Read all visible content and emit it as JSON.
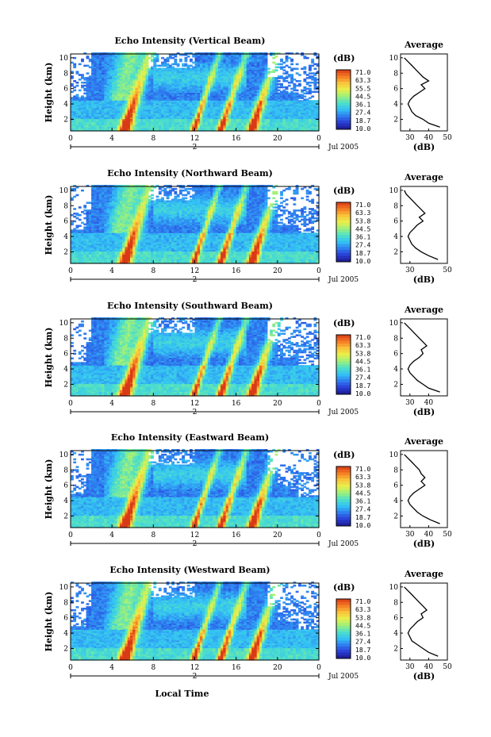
{
  "chart_data": [
    {
      "type": "heatmap",
      "title": "Echo Intensity (Vertical Beam)",
      "ylabel": "Height (km)",
      "xlim": [
        0,
        24
      ],
      "ylim": [
        0.5,
        10.5
      ],
      "x_ticks": [
        "0",
        "4",
        "8",
        "12",
        "16",
        "20",
        "0"
      ],
      "y_ticks": [
        "2",
        "4",
        "6",
        "8",
        "10"
      ],
      "date_labels": [
        "2",
        "Jul 2005"
      ],
      "colorbar": {
        "unit": "(dB)",
        "labels": [
          "71.0",
          "63.3",
          "55.5",
          "44.5",
          "36.1",
          "27.4",
          "18.7",
          "10.0"
        ]
      },
      "average_profile": {
        "title": "Average",
        "xlabel": "(dB)",
        "x_ticks": [
          "30",
          "40",
          "50"
        ],
        "xlim": [
          25,
          50
        ],
        "heights": [
          1,
          1.5,
          2,
          2.5,
          3,
          3.5,
          4,
          4.5,
          5,
          5.5,
          6,
          6.5,
          7,
          7.5,
          8,
          8.5,
          9,
          9.5,
          10
        ],
        "values": [
          46,
          40,
          37,
          33,
          31,
          30,
          29,
          30,
          32,
          35,
          38,
          36,
          40,
          37,
          35,
          33,
          31,
          29,
          27
        ]
      }
    },
    {
      "type": "heatmap",
      "title": "Echo Intensity (Northward Beam)",
      "ylabel": "Height (km)",
      "xlim": [
        0,
        24
      ],
      "ylim": [
        0.5,
        10.5
      ],
      "x_ticks": [
        "0",
        "4",
        "8",
        "12",
        "16",
        "20",
        "0"
      ],
      "y_ticks": [
        "2",
        "4",
        "6",
        "8",
        "10"
      ],
      "date_labels": [
        "2",
        "Jul 2005"
      ],
      "colorbar": {
        "unit": "(dB)",
        "labels": [
          "71.0",
          "63.3",
          "53.8",
          "44.5",
          "36.1",
          "27.4",
          "18.7",
          "10.0"
        ]
      },
      "average_profile": {
        "title": "Average",
        "xlabel": "(dB)",
        "x_ticks": [
          "30",
          "50"
        ],
        "xlim": [
          25,
          50
        ],
        "heights": [
          1,
          1.5,
          2,
          2.5,
          3,
          3.5,
          4,
          4.5,
          5,
          5.5,
          6,
          6.5,
          7,
          7.5,
          8,
          8.5,
          9,
          9.5,
          10
        ],
        "values": [
          45,
          40,
          36,
          33,
          31,
          30,
          29,
          30,
          32,
          34,
          37,
          35,
          38,
          36,
          34,
          32,
          30,
          28,
          27
        ]
      }
    },
    {
      "type": "heatmap",
      "title": "Echo Intensity (Southward Beam)",
      "ylabel": "Height (km)",
      "xlim": [
        0,
        24
      ],
      "ylim": [
        0.5,
        10.5
      ],
      "x_ticks": [
        "0",
        "4",
        "8",
        "12",
        "16",
        "20",
        "0"
      ],
      "y_ticks": [
        "2",
        "4",
        "6",
        "8",
        "10"
      ],
      "date_labels": [
        "2",
        "Jul 2005"
      ],
      "colorbar": {
        "unit": "(dB)",
        "labels": [
          "71.0",
          "63.3",
          "53.8",
          "44.5",
          "36.1",
          "27.4",
          "18.7",
          "10.0"
        ]
      },
      "average_profile": {
        "title": "Average",
        "xlabel": "(dB)",
        "x_ticks": [
          "30",
          "40"
        ],
        "xlim": [
          25,
          50
        ],
        "heights": [
          1,
          1.5,
          2,
          2.5,
          3,
          3.5,
          4,
          4.5,
          5,
          5.5,
          6,
          6.5,
          7,
          7.5,
          8,
          8.5,
          9,
          9.5,
          10
        ],
        "values": [
          46,
          40,
          37,
          34,
          32,
          30,
          29,
          30,
          32,
          35,
          37,
          36,
          39,
          37,
          35,
          33,
          31,
          29,
          27
        ]
      }
    },
    {
      "type": "heatmap",
      "title": "Echo Intensity (Eastward Beam)",
      "ylabel": "Height (km)",
      "xlim": [
        0,
        24
      ],
      "ylim": [
        0.5,
        10.5
      ],
      "x_ticks": [
        "0",
        "4",
        "8",
        "12",
        "16",
        "20",
        "0"
      ],
      "y_ticks": [
        "2",
        "4",
        "6",
        "8",
        "10"
      ],
      "date_labels": [
        "2",
        "Jul 2005"
      ],
      "colorbar": {
        "unit": "(dB)",
        "labels": [
          "71.0",
          "63.3",
          "53.8",
          "44.5",
          "36.1",
          "27.4",
          "18.7",
          "10.0"
        ]
      },
      "average_profile": {
        "title": "Average",
        "xlabel": "(dB)",
        "x_ticks": [
          "30",
          "40",
          "50"
        ],
        "xlim": [
          25,
          50
        ],
        "heights": [
          1,
          1.5,
          2,
          2.5,
          3,
          3.5,
          4,
          4.5,
          5,
          5.5,
          6,
          6.5,
          7,
          7.5,
          8,
          8.5,
          9,
          9.5,
          10
        ],
        "values": [
          46,
          41,
          37,
          34,
          32,
          30,
          29,
          30,
          32,
          35,
          38,
          36,
          38,
          36,
          35,
          33,
          31,
          29,
          27
        ]
      }
    },
    {
      "type": "heatmap",
      "title": "Echo Intensity (Westward Beam)",
      "ylabel": "Height (km)",
      "xlabel": "Local Time",
      "xlim": [
        0,
        24
      ],
      "ylim": [
        0.5,
        10.5
      ],
      "x_ticks": [
        "0",
        "4",
        "8",
        "12",
        "16",
        "20",
        "0"
      ],
      "y_ticks": [
        "2",
        "4",
        "6",
        "8",
        "10"
      ],
      "date_labels": [
        "2",
        "Jul 2005"
      ],
      "colorbar": {
        "unit": "(dB)",
        "labels": [
          "71.0",
          "63.3",
          "53.8",
          "44.5",
          "36.1",
          "27.4",
          "18.7",
          "10.0"
        ]
      },
      "average_profile": {
        "title": "Average",
        "xlabel": "(dB)",
        "x_ticks": [
          "30",
          "40",
          "50"
        ],
        "xlim": [
          25,
          50
        ],
        "heights": [
          1,
          1.5,
          2,
          2.5,
          3,
          3.5,
          4,
          4.5,
          5,
          5.5,
          6,
          6.5,
          7,
          7.5,
          8,
          8.5,
          9,
          9.5,
          10
        ],
        "values": [
          45,
          40,
          37,
          34,
          31,
          30,
          29,
          30,
          32,
          34,
          37,
          36,
          39,
          37,
          35,
          33,
          31,
          29,
          27
        ]
      }
    }
  ],
  "colors": {
    "colormap": [
      "#1a1a8c",
      "#2a3cd6",
      "#2f7df0",
      "#33c2f5",
      "#4fe0c8",
      "#9ef07a",
      "#e9f04a",
      "#f9c23a",
      "#f57a22",
      "#d83a18"
    ],
    "line": "#000000"
  }
}
